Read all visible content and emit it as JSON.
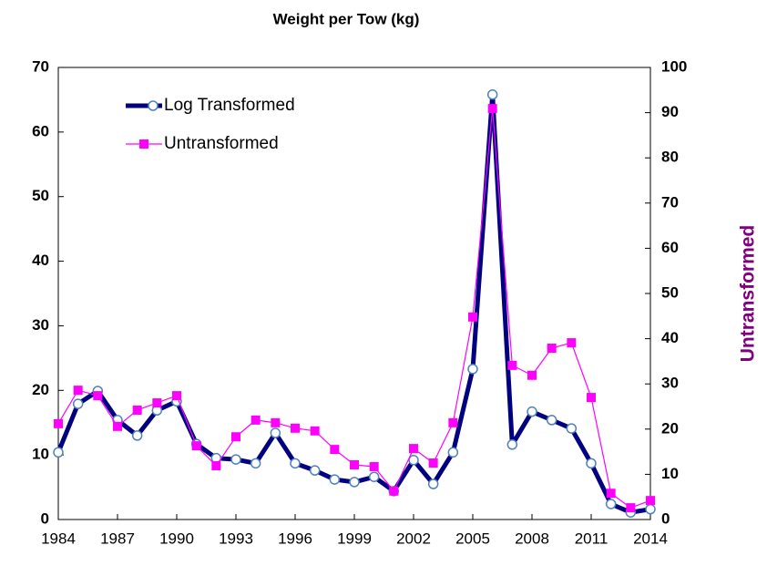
{
  "chart_data": {
    "type": "line",
    "title": "Weight per Tow (kg)",
    "y2label": "Untransformed",
    "x": [
      1984,
      1985,
      1986,
      1987,
      1988,
      1989,
      1990,
      1991,
      1992,
      1993,
      1994,
      1995,
      1996,
      1997,
      1998,
      1999,
      2000,
      2001,
      2002,
      2003,
      2004,
      2005,
      2006,
      2007,
      2008,
      2009,
      2010,
      2011,
      2012,
      2013,
      2014
    ],
    "series": [
      {
        "name": "Log Transformed",
        "color": "#000080",
        "axis": "y",
        "values": [
          10.4,
          17.9,
          19.9,
          15.4,
          13.0,
          16.9,
          18.3,
          11.7,
          9.5,
          9.3,
          8.7,
          13.4,
          8.7,
          7.6,
          6.2,
          5.8,
          6.6,
          4.4,
          9.2,
          5.5,
          10.4,
          23.3,
          65.8,
          11.6,
          16.7,
          15.4,
          14.1,
          8.7,
          2.4,
          1.1,
          1.6
        ]
      },
      {
        "name": "Untransformed",
        "color": "#ff00ff",
        "axis": "y2",
        "values": [
          21.2,
          28.6,
          27.4,
          20.6,
          24.2,
          25.8,
          27.4,
          16.3,
          11.9,
          18.3,
          22.0,
          21.4,
          20.2,
          19.6,
          15.5,
          12.1,
          11.7,
          6.3,
          15.7,
          12.5,
          21.4,
          44.8,
          90.9,
          34.1,
          31.9,
          37.9,
          39.1,
          27.0,
          5.8,
          2.6,
          4.2
        ]
      }
    ],
    "xlim": [
      1984,
      2014
    ],
    "xticks": [
      1984,
      1987,
      1990,
      1993,
      1996,
      1999,
      2002,
      2005,
      2008,
      2011,
      2014
    ],
    "ylim": [
      0,
      70
    ],
    "yticks": [
      0,
      10,
      20,
      30,
      40,
      50,
      60,
      70
    ],
    "y2lim": [
      0,
      100
    ],
    "y2ticks": [
      0,
      10,
      20,
      30,
      40,
      50,
      60,
      70,
      80,
      90,
      100
    ],
    "legend": "upper left",
    "y2label_color": "#800080"
  }
}
